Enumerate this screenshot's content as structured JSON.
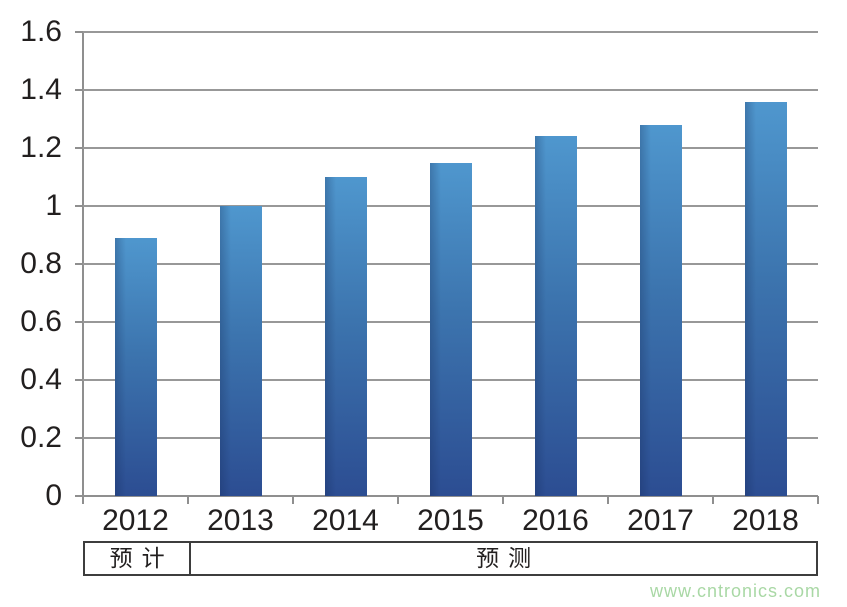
{
  "chart_data": {
    "type": "bar",
    "title": "",
    "xlabel": "",
    "ylabel": "",
    "categories": [
      "2012",
      "2013",
      "2014",
      "2015",
      "2016",
      "2017",
      "2018"
    ],
    "values": [
      0.89,
      1.0,
      1.1,
      1.15,
      1.24,
      1.28,
      1.36
    ],
    "ylim": [
      0,
      1.6
    ],
    "yticks": [
      0,
      0.2,
      0.4,
      0.6,
      0.8,
      1,
      1.2,
      1.4,
      1.6
    ],
    "ytick_labels": [
      "0",
      "0.2",
      "0.4",
      "0.6",
      "0.8",
      "1",
      "1.2",
      "1.4",
      "1.6"
    ],
    "grid": true,
    "legend": null,
    "bar_color_top": "#4f97ce",
    "bar_color_bottom": "#2c4d92",
    "period_bands": [
      {
        "label": "预计",
        "span_categories": 1
      },
      {
        "label": "预测",
        "span_categories": 6
      }
    ]
  },
  "watermark": {
    "text": "www.cntronics.com",
    "color": "#a9d8a5"
  }
}
